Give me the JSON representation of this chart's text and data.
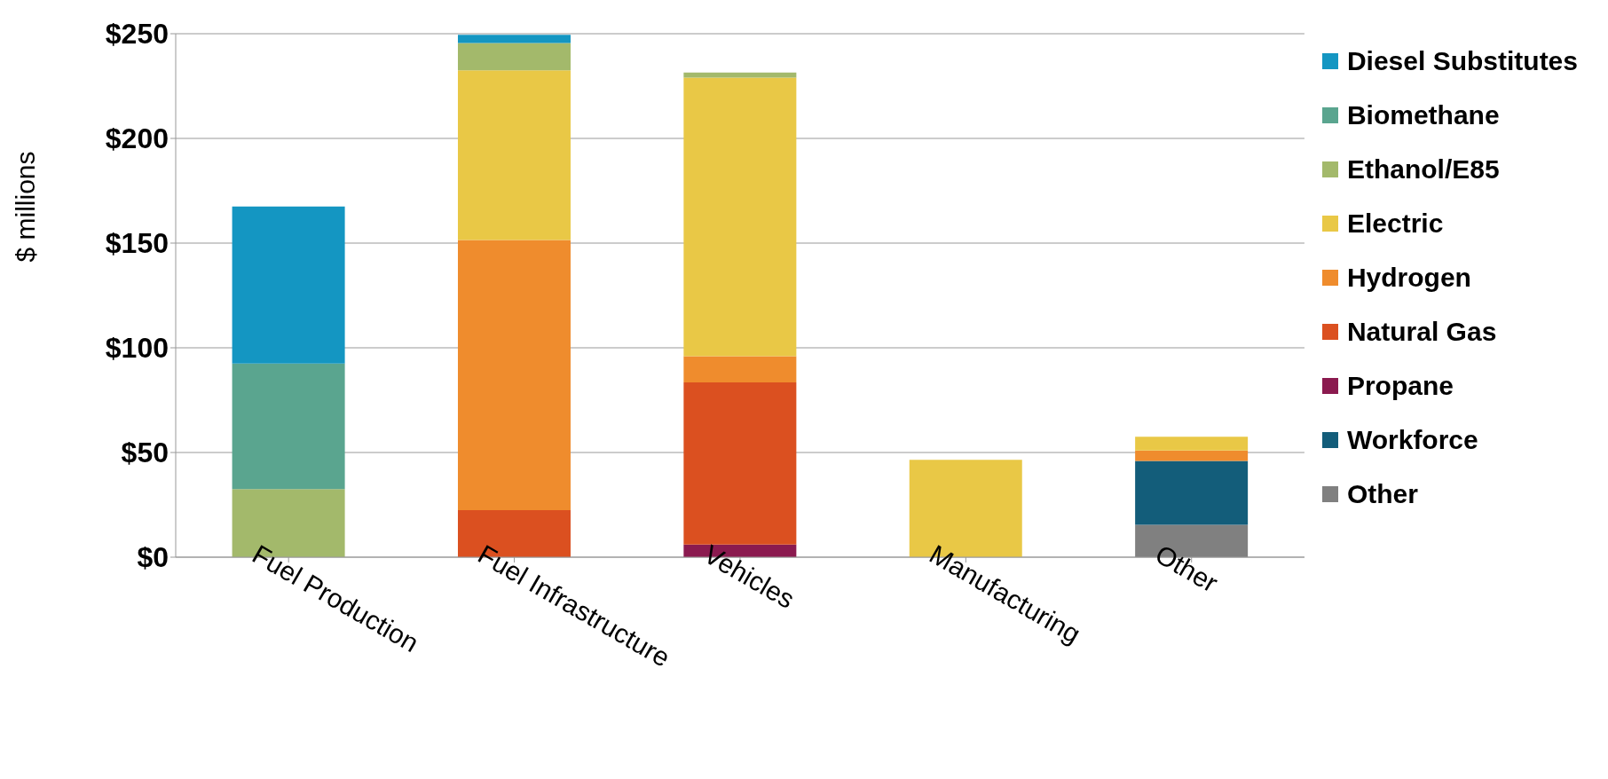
{
  "chart_data": {
    "type": "bar",
    "stacked": true,
    "ylabel": "$ millions",
    "categories": [
      "Fuel Production",
      "Fuel Infrastructure",
      "Vehicles",
      "Manufacturing",
      "Other"
    ],
    "series": [
      {
        "name": "Other",
        "color": "#808080",
        "values": [
          null,
          null,
          null,
          null,
          15.5
        ]
      },
      {
        "name": "Workforce",
        "color": "#135d7a",
        "values": [
          null,
          null,
          null,
          null,
          30.5
        ]
      },
      {
        "name": "Propane",
        "color": "#8b1a4f",
        "values": [
          null,
          null,
          6,
          null,
          null
        ]
      },
      {
        "name": "Natural Gas",
        "color": "#db5020",
        "values": [
          null,
          22.5,
          77.5,
          null,
          null
        ]
      },
      {
        "name": "Hydrogen",
        "color": "#ef8c2d",
        "values": [
          null,
          129,
          12.5,
          null,
          5
        ]
      },
      {
        "name": "Electric",
        "color": "#e9c846",
        "values": [
          null,
          81,
          133,
          46.5,
          6.5
        ]
      },
      {
        "name": "Ethanol/E85",
        "color": "#a3b96b",
        "values": [
          32.5,
          13,
          2.5,
          null,
          null
        ]
      },
      {
        "name": "Biomethane",
        "color": "#5aa58f",
        "values": [
          60,
          null,
          null,
          null,
          null
        ]
      },
      {
        "name": "Diesel Substitutes",
        "color": "#1496c2",
        "values": [
          75,
          4,
          null,
          null,
          null
        ]
      }
    ],
    "ylim": [
      0,
      250
    ],
    "yticks": [
      {
        "value": 0,
        "label": "$0"
      },
      {
        "value": 50,
        "label": "$50"
      },
      {
        "value": 100,
        "label": "$100"
      },
      {
        "value": 150,
        "label": "$150"
      },
      {
        "value": 200,
        "label": "$200"
      },
      {
        "value": 250,
        "label": "$250"
      }
    ],
    "grid": "y",
    "legend": "right"
  }
}
